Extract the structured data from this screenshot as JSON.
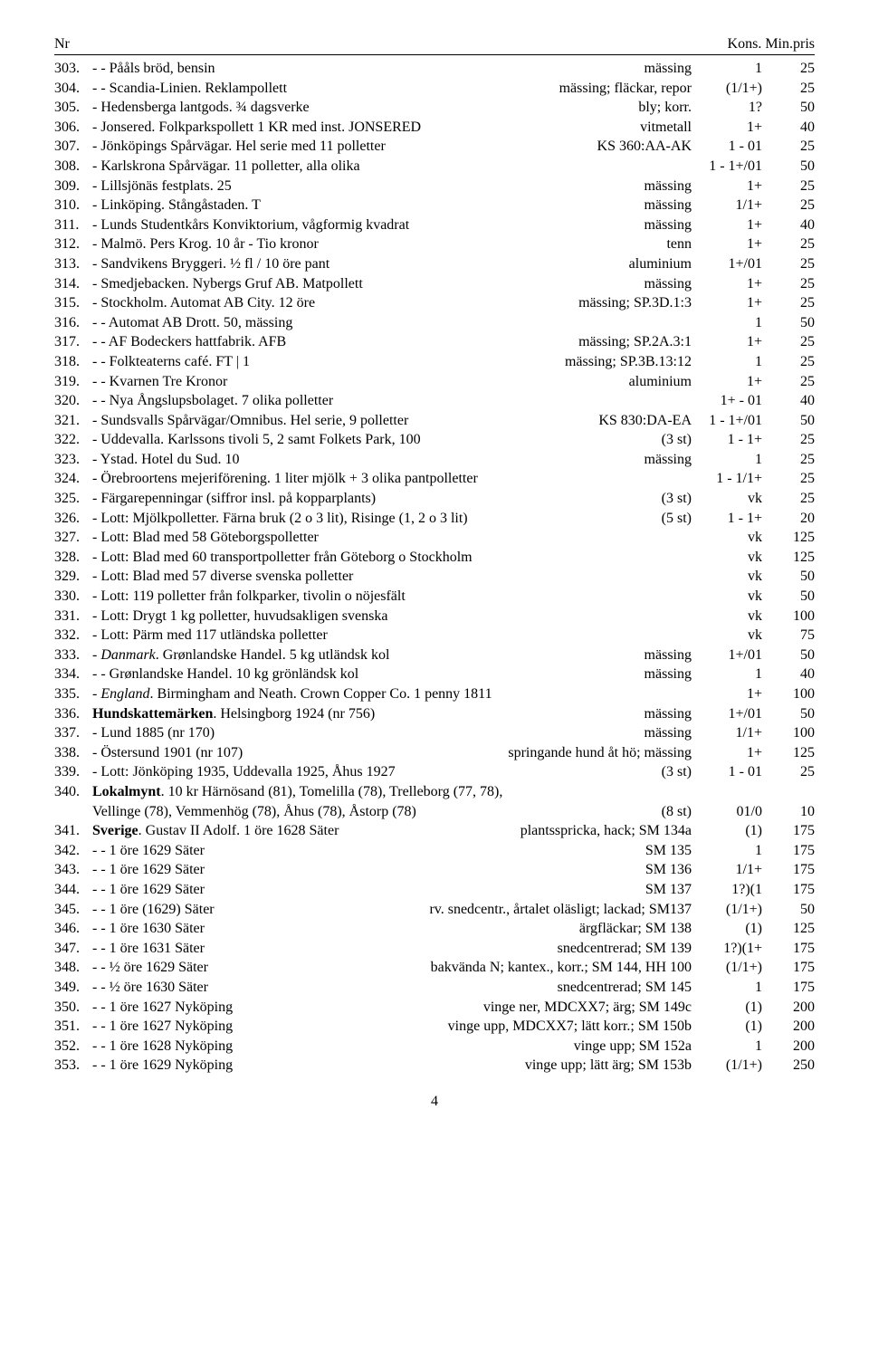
{
  "header": {
    "nr": "Nr",
    "kons": "Kons.",
    "pris": "Min.pris"
  },
  "rows": [
    {
      "nr": "303.",
      "desc": "- - Pååls bröd, bensin",
      "spec": "mässing",
      "kons": "1",
      "pris": "25"
    },
    {
      "nr": "304.",
      "desc": "- - Scandia-Linien. Reklampollett",
      "spec": "mässing; fläckar, repor",
      "kons": "(1/1+)",
      "pris": "25"
    },
    {
      "nr": "305.",
      "desc": "- Hedensberga lantgods. ¾ dagsverke",
      "spec": "bly; korr.",
      "kons": "1?",
      "pris": "50"
    },
    {
      "nr": "306.",
      "desc": "- Jonsered. Folkparkspollett 1 KR med inst. JONSERED",
      "spec": "vitmetall",
      "kons": "1+",
      "pris": "40"
    },
    {
      "nr": "307.",
      "desc": "- Jönköpings Spårvägar. Hel serie med 11 polletter",
      "spec": "KS 360:AA-AK",
      "kons": "1 - 01",
      "pris": "25"
    },
    {
      "nr": "308.",
      "desc": "- Karlskrona Spårvägar. 11 polletter, alla olika",
      "spec": "",
      "kons": "1 - 1+/01",
      "pris": "50"
    },
    {
      "nr": "309.",
      "desc": "- Lillsjönäs festplats. 25",
      "spec": "mässing",
      "kons": "1+",
      "pris": "25"
    },
    {
      "nr": "310.",
      "desc": "- Linköping. Stångåstaden. T",
      "spec": "mässing",
      "kons": "1/1+",
      "pris": "25"
    },
    {
      "nr": "311.",
      "desc": "- Lunds Studentkårs Konviktorium, vågformig kvadrat",
      "spec": "mässing",
      "kons": "1+",
      "pris": "40"
    },
    {
      "nr": "312.",
      "desc": "- Malmö. Pers Krog. 10 år - Tio kronor",
      "spec": "tenn",
      "kons": "1+",
      "pris": "25"
    },
    {
      "nr": "313.",
      "desc": "- Sandvikens Bryggeri. ½ fl / 10 öre pant",
      "spec": "aluminium",
      "kons": "1+/01",
      "pris": "25"
    },
    {
      "nr": "314.",
      "desc": "- Smedjebacken. Nybergs Gruf AB. Matpollett",
      "spec": "mässing",
      "kons": "1+",
      "pris": "25"
    },
    {
      "nr": "315.",
      "desc": "- Stockholm. Automat AB City. 12 öre",
      "spec": "mässing; SP.3D.1:3",
      "kons": "1+",
      "pris": "25"
    },
    {
      "nr": "316.",
      "desc": "- - Automat AB Drott. 50, mässing",
      "spec": "",
      "kons": "1",
      "pris": "50"
    },
    {
      "nr": "317.",
      "desc": "- - AF Bodeckers hattfabrik. AFB",
      "spec": "mässing; SP.2A.3:1",
      "kons": "1+",
      "pris": "25"
    },
    {
      "nr": "318.",
      "desc": "- - Folkteaterns café. FT | 1",
      "spec": "mässing; SP.3B.13:12",
      "kons": "1",
      "pris": "25"
    },
    {
      "nr": "319.",
      "desc": "- - Kvarnen Tre Kronor",
      "spec": "aluminium",
      "kons": "1+",
      "pris": "25"
    },
    {
      "nr": "320.",
      "desc": "- - Nya Ångslupsbolaget. 7 olika polletter",
      "spec": "",
      "kons": "1+ - 01",
      "pris": "40"
    },
    {
      "nr": "321.",
      "desc": "- Sundsvalls Spårvägar/Omnibus. Hel serie, 9 polletter",
      "spec": "KS 830:DA-EA",
      "kons": "1 - 1+/01",
      "pris": "50"
    },
    {
      "nr": "322.",
      "desc": "- Uddevalla. Karlssons tivoli 5, 2 samt Folkets Park, 100",
      "spec": "(3 st)",
      "kons": "1 - 1+",
      "pris": "25"
    },
    {
      "nr": "323.",
      "desc": "- Ystad. Hotel du Sud. 10",
      "spec": "mässing",
      "kons": "1",
      "pris": "25"
    },
    {
      "nr": "324.",
      "desc": "- Örebroortens mejeriförening. 1 liter mjölk + 3 olika pantpolletter",
      "spec": "",
      "kons": "1 - 1/1+",
      "pris": "25"
    },
    {
      "nr": "325.",
      "desc": "- Färgarepenningar (siffror insl. på kopparplants)",
      "spec": "(3 st)",
      "kons": "vk",
      "pris": "25"
    },
    {
      "nr": "326.",
      "desc": "- Lott: Mjölkpolletter. Färna bruk (2 o 3 lit), Risinge (1, 2 o 3 lit)",
      "spec": "(5 st)",
      "kons": "1 - 1+",
      "pris": "20"
    },
    {
      "nr": "327.",
      "desc": "- Lott: Blad med 58 Göteborgspolletter",
      "spec": "",
      "kons": "vk",
      "pris": "125"
    },
    {
      "nr": "328.",
      "desc": "- Lott: Blad med 60 transportpolletter från Göteborg o Stockholm",
      "spec": "",
      "kons": "vk",
      "pris": "125"
    },
    {
      "nr": "329.",
      "desc": "- Lott: Blad med 57 diverse svenska polletter",
      "spec": "",
      "kons": "vk",
      "pris": "50"
    },
    {
      "nr": "330.",
      "desc": "- Lott: 119 polletter från folkparker, tivolin o nöjesfält",
      "spec": "",
      "kons": "vk",
      "pris": "50"
    },
    {
      "nr": "331.",
      "desc": "- Lott: Drygt 1 kg polletter, huvudsakligen svenska",
      "spec": "",
      "kons": "vk",
      "pris": "100"
    },
    {
      "nr": "332.",
      "desc": "- Lott: Pärm med 117 utländska polletter",
      "spec": "",
      "kons": "vk",
      "pris": "75"
    },
    {
      "nr": "333.",
      "desc": "- <span class='italic'>Danmark</span>. Grønlandske Handel. 5 kg utländsk kol",
      "spec": "mässing",
      "kons": "1+/01",
      "pris": "50",
      "html": true
    },
    {
      "nr": "334.",
      "desc": "- - Grønlandske Handel. 10 kg grönländsk kol",
      "spec": "mässing",
      "kons": "1",
      "pris": "40"
    },
    {
      "nr": "335.",
      "desc": "- <span class='italic'>England</span>. Birmingham and Neath. Crown Copper Co. 1 penny 1811",
      "spec": "",
      "kons": "1+",
      "pris": "100",
      "html": true
    },
    {
      "nr": "336.",
      "desc": "<span class='bold'>Hundskattemärken</span>. Helsingborg 1924 (nr 756)",
      "spec": "mässing",
      "kons": "1+/01",
      "pris": "50",
      "html": true
    },
    {
      "nr": "337.",
      "desc": "- Lund 1885 (nr 170)",
      "spec": "mässing",
      "kons": "1/1+",
      "pris": "100"
    },
    {
      "nr": "338.",
      "desc": "- Östersund 1901 (nr 107)",
      "spec": "springande hund åt hö; mässing",
      "kons": "1+",
      "pris": "125"
    },
    {
      "nr": "339.",
      "desc": "- Lott: Jönköping 1935, Uddevalla 1925, Åhus 1927",
      "spec": "(3 st)",
      "kons": "1 - 01",
      "pris": "25"
    },
    {
      "nr": "340.",
      "desc": "<span class='bold'>Lokalmynt</span>. 10 kr Härnösand (81), Tomelilla (78), Trelleborg (77, 78),",
      "spec": "",
      "kons": "",
      "pris": "",
      "html": true,
      "cont": true
    },
    {
      "nr": "",
      "desc": "Vellinge (78), Vemmenhög (78), Åhus (78), Åstorp (78)",
      "spec": "(8 st)",
      "kons": "01/0",
      "pris": "10",
      "indent": true
    },
    {
      "nr": "341.",
      "desc": "<span class='bold'>Sverige</span>. Gustav II Adolf. 1 öre 1628 Säter",
      "spec": "plantsspricka, hack; SM 134a",
      "kons": "(1)",
      "pris": "175",
      "html": true
    },
    {
      "nr": "342.",
      "desc": "- - 1 öre 1629 Säter",
      "spec": "SM 135",
      "kons": "1",
      "pris": "175"
    },
    {
      "nr": "343.",
      "desc": "- - 1 öre 1629 Säter",
      "spec": "SM 136",
      "kons": "1/1+",
      "pris": "175"
    },
    {
      "nr": "344.",
      "desc": "- - 1 öre 1629 Säter",
      "spec": "SM 137",
      "kons": "1?)(1",
      "pris": "175"
    },
    {
      "nr": "345.",
      "desc": "- - 1 öre (1629) Säter",
      "spec": "rv. snedcentr., årtalet oläsligt; lackad; SM137",
      "kons": "(1/1+)",
      "pris": "50"
    },
    {
      "nr": "346.",
      "desc": "- - 1 öre 1630 Säter",
      "spec": "ärgfläckar; SM 138",
      "kons": "(1)",
      "pris": "125"
    },
    {
      "nr": "347.",
      "desc": "- - 1 öre 1631 Säter",
      "spec": "snedcentrerad; SM 139",
      "kons": "1?)(1+",
      "pris": "175"
    },
    {
      "nr": "348.",
      "desc": "- - ½ öre 1629 Säter",
      "spec": "bakvända N; kantex., korr.; SM 144, HH 100",
      "kons": "(1/1+)",
      "pris": "175"
    },
    {
      "nr": "349.",
      "desc": "- - ½ öre 1630 Säter",
      "spec": "snedcentrerad; SM 145",
      "kons": "1",
      "pris": "175"
    },
    {
      "nr": "350.",
      "desc": "- - 1 öre 1627 Nyköping",
      "spec": "vinge ner, MDCXX7; ärg; SM 149c",
      "kons": "(1)",
      "pris": "200"
    },
    {
      "nr": "351.",
      "desc": "- - 1 öre 1627 Nyköping",
      "spec": "vinge upp, MDCXX7; lätt korr.; SM 150b",
      "kons": "(1)",
      "pris": "200"
    },
    {
      "nr": "352.",
      "desc": "- - 1 öre 1628 Nyköping",
      "spec": "vinge upp; SM 152a",
      "kons": "1",
      "pris": "200"
    },
    {
      "nr": "353.",
      "desc": "- - 1 öre 1629 Nyköping",
      "spec": "vinge upp; lätt ärg; SM 153b",
      "kons": "(1/1+)",
      "pris": "250"
    }
  ],
  "page_number": "4"
}
